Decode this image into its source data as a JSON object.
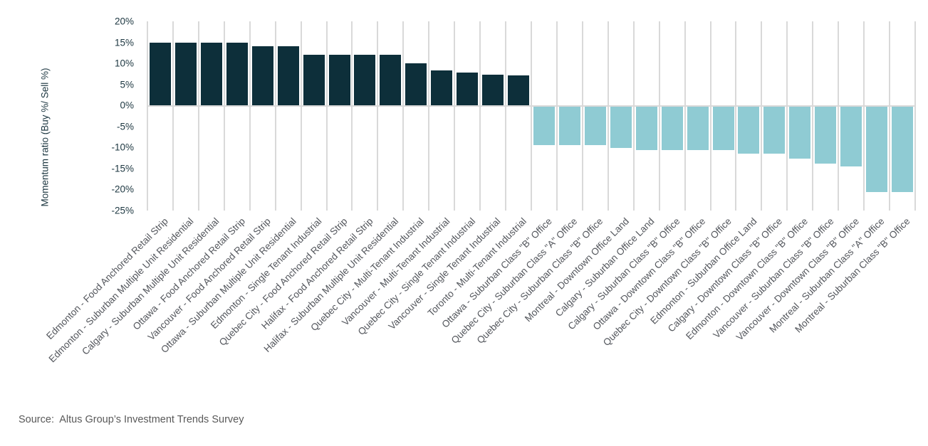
{
  "chart_data": {
    "type": "bar",
    "title": "",
    "xlabel": "",
    "ylabel": "Momentum ratio (Buy %/ Sell %)",
    "ylim": [
      -25,
      20
    ],
    "ytick_step": 5,
    "ytick_labels": [
      "20%",
      "15%",
      "10%",
      "5%",
      "0%",
      "-5%",
      "-10%",
      "-15%",
      "-20%",
      "-25%"
    ],
    "grid": "vertical-category-gridlines",
    "legend_position": "none",
    "series_name": "Momentum ratio (Buy %/ Sell %)",
    "categories": [
      "Edmonton - Food Anchored Retail Strip",
      "Edmonton - Suburban Multiple Unit Residential",
      "Calgary - Suburban Multiple Unit Residential",
      "Ottawa - Food Anchored Retail Strip",
      "Vancouver - Food Anchored Retail Strip",
      "Ottawa - Suburban Multiple Unit Residential",
      "Edmonton - Single Tenant Industrial",
      "Quebec City - Food Anchored Retail Strip",
      "Halifax - Food Anchored Retail Strip",
      "Halifax - Suburban Multiple Unit Residential",
      "Quebec City - Multi-Tenant Industrial",
      "Vancouver - Multi-Tenant Industrial",
      "Quebec City - Single Tenant Industrial",
      "Vancouver - Single Tenant Industrial",
      "Toronto - Multi-Tenant Industrial",
      "Ottawa - Suburban Class \"B\" Office",
      "Quebec City - Suburban Class \"A\" Office",
      "Quebec City - Suburban Class \"B\" Office",
      "Montreal - Downtown Office Land",
      "Calgary - Suburban Office Land",
      "Calgary - Suburban Class \"B\" Office",
      "Ottawa - Downtown Class \"B\" Office",
      "Quebec City - Downtown Class \"B\" Office",
      "Edmonton - Suburban Office Land",
      "Calgary - Downtown Class \"B\" Office",
      "Edmonton - Downtown Class \"B\" Office",
      "Vancouver - Suburban Class \"B\" Office",
      "Vancouver - Downtown Class \"B\" Office",
      "Montreal - Suburban Class \"A\" Office",
      "Montreal - Suburban Class \"B\" Office"
    ],
    "values": [
      15,
      15,
      15,
      15,
      14,
      14,
      12,
      12,
      12,
      12,
      10,
      8.4,
      7.8,
      7.3,
      7.1,
      -9.1,
      -9.1,
      -9.1,
      -9.9,
      -10.4,
      -10.4,
      -10.4,
      -10.4,
      -11.2,
      -11.2,
      -12.4,
      -13.5,
      -14.3,
      -20.4,
      -20.4
    ],
    "colors": {
      "positive_bar": "#0d2f3a",
      "negative_bar": "#8fcbd3",
      "gridline": "#d9d9d9",
      "zero_line": "#d9d9d9",
      "ytick_text": "#1d3741",
      "xlabel_text": "#53565c",
      "ylabel_text": "#1d3741"
    }
  },
  "footer": {
    "source_text": "Source:  Altus Group’s Investment Trends Survey",
    "source_color": "#595959"
  }
}
